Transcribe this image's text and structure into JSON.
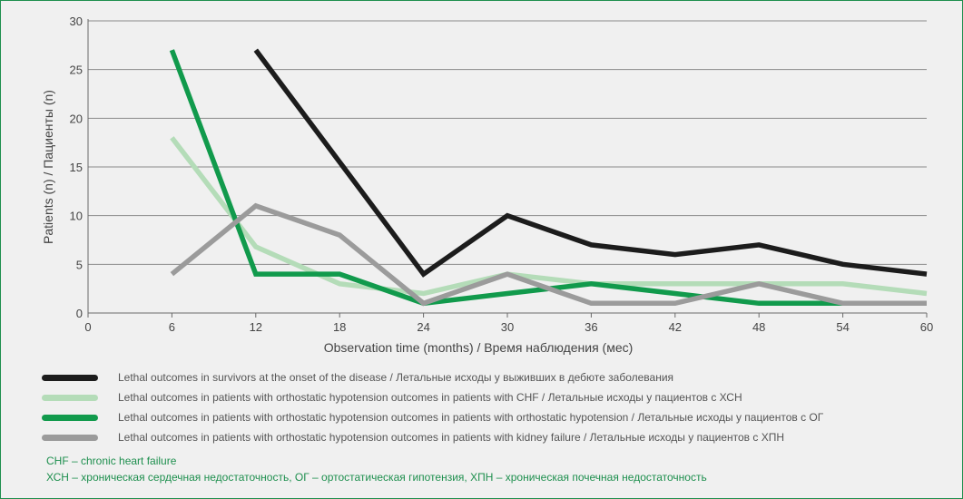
{
  "chart_data": {
    "type": "line",
    "title": "",
    "xlabel": "Observation time (months) / Время наблюдения (мес)",
    "ylabel": "Patients (n) / Пациенты (n)",
    "xlim": [
      0,
      60
    ],
    "ylim": [
      0,
      30
    ],
    "xticks": [
      "0",
      "6",
      "12",
      "18",
      "24",
      "30",
      "36",
      "42",
      "48",
      "54",
      "60"
    ],
    "yticks": [
      "0",
      "5",
      "10",
      "15",
      "20",
      "25",
      "30"
    ],
    "grid": true,
    "legend_position": "bottom",
    "series": [
      {
        "name": "Lethal outcomes in survivors at the onset of the disease / Летальные исходы у выживших в дебюте заболевания",
        "color": "#1c1c1c",
        "x": [
          12,
          18,
          24,
          30,
          36,
          42,
          48,
          54,
          60
        ],
        "values": [
          27,
          15.5,
          4,
          10,
          7,
          6,
          7,
          5,
          4
        ]
      },
      {
        "name": "Lethal outcomes in patients with orthostatic hypotension outcomes in patients with CHF / Летальные исходы у пациентов с ХСН",
        "color": "#b4dcb8",
        "x": [
          6,
          12,
          18,
          24,
          30,
          36,
          42,
          48,
          54,
          60
        ],
        "values": [
          18,
          6.8,
          3,
          2,
          4,
          3,
          3,
          3,
          3,
          2
        ]
      },
      {
        "name": "Lethal outcomes in patients with orthostatic hypotension outcomes in patients with orthostatic hypotension / Летальные исходы у пациентов с ОГ",
        "color": "#119a4c",
        "x": [
          6,
          12,
          18,
          24,
          30,
          36,
          42,
          48,
          54,
          60
        ],
        "values": [
          27,
          4,
          4,
          1,
          2,
          3,
          2,
          1,
          1,
          1
        ]
      },
      {
        "name": "Lethal outcomes in patients with orthostatic hypotension outcomes in patients with kidney failure / Летальные исходы у пациентов с ХПН",
        "color": "#9b9b9b",
        "x": [
          6,
          12,
          18,
          24,
          30,
          36,
          42,
          48,
          54,
          60
        ],
        "values": [
          4,
          11,
          8,
          1,
          4,
          1,
          1,
          3,
          1,
          1
        ]
      }
    ]
  },
  "notes": [
    "CHF – chronic heart failure",
    "ХСН – хроническая сердечная недостаточность, ОГ – ортостатическая гипотензия, ХПН – хроническая почечная недостаточность"
  ]
}
